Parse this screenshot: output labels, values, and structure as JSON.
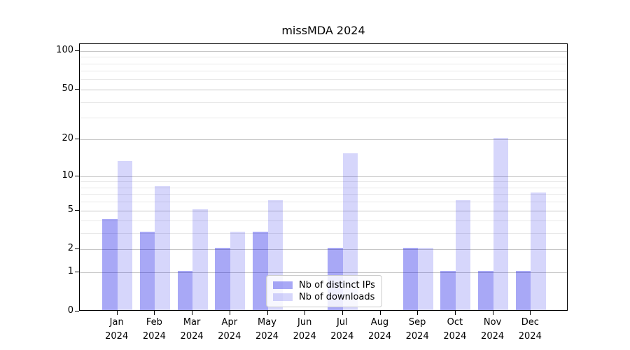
{
  "title": "missMDA 2024",
  "chart_data": {
    "type": "bar",
    "title": "missMDA 2024",
    "categories": [
      "Jan 2024",
      "Feb 2024",
      "Mar 2024",
      "Apr 2024",
      "May 2024",
      "Jun 2024",
      "Jul 2024",
      "Aug 2024",
      "Sep 2024",
      "Oct 2024",
      "Nov 2024",
      "Dec 2024"
    ],
    "series": [
      {
        "name": "Nb of distinct IPs",
        "color": "rgba(0,0,230,0.34)",
        "values": [
          4,
          3,
          1,
          2,
          3,
          0,
          2,
          0,
          2,
          1,
          1,
          1
        ]
      },
      {
        "name": "Nb of downloads",
        "color": "rgba(0,0,230,0.16)",
        "values": [
          13,
          8,
          5,
          3,
          6,
          0,
          15,
          0,
          2,
          6,
          20,
          7
        ]
      }
    ],
    "xlabel": "",
    "ylabel": "",
    "yscale": "log1p",
    "y_ticks": [
      0,
      1,
      2,
      5,
      10,
      20,
      50,
      100
    ],
    "y_minor_ticks": [
      3,
      4,
      6,
      7,
      8,
      9,
      30,
      40,
      60,
      70,
      80,
      90
    ],
    "ylim": [
      0,
      113
    ],
    "x_units_total": 13,
    "bar_width_units": 0.4,
    "grid": true,
    "legend_position": "lower center",
    "colors": {
      "grid_major": "#c6c6c6",
      "grid_minor": "#e9e9e9",
      "axis": "#000000",
      "background": "#ffffff"
    }
  }
}
